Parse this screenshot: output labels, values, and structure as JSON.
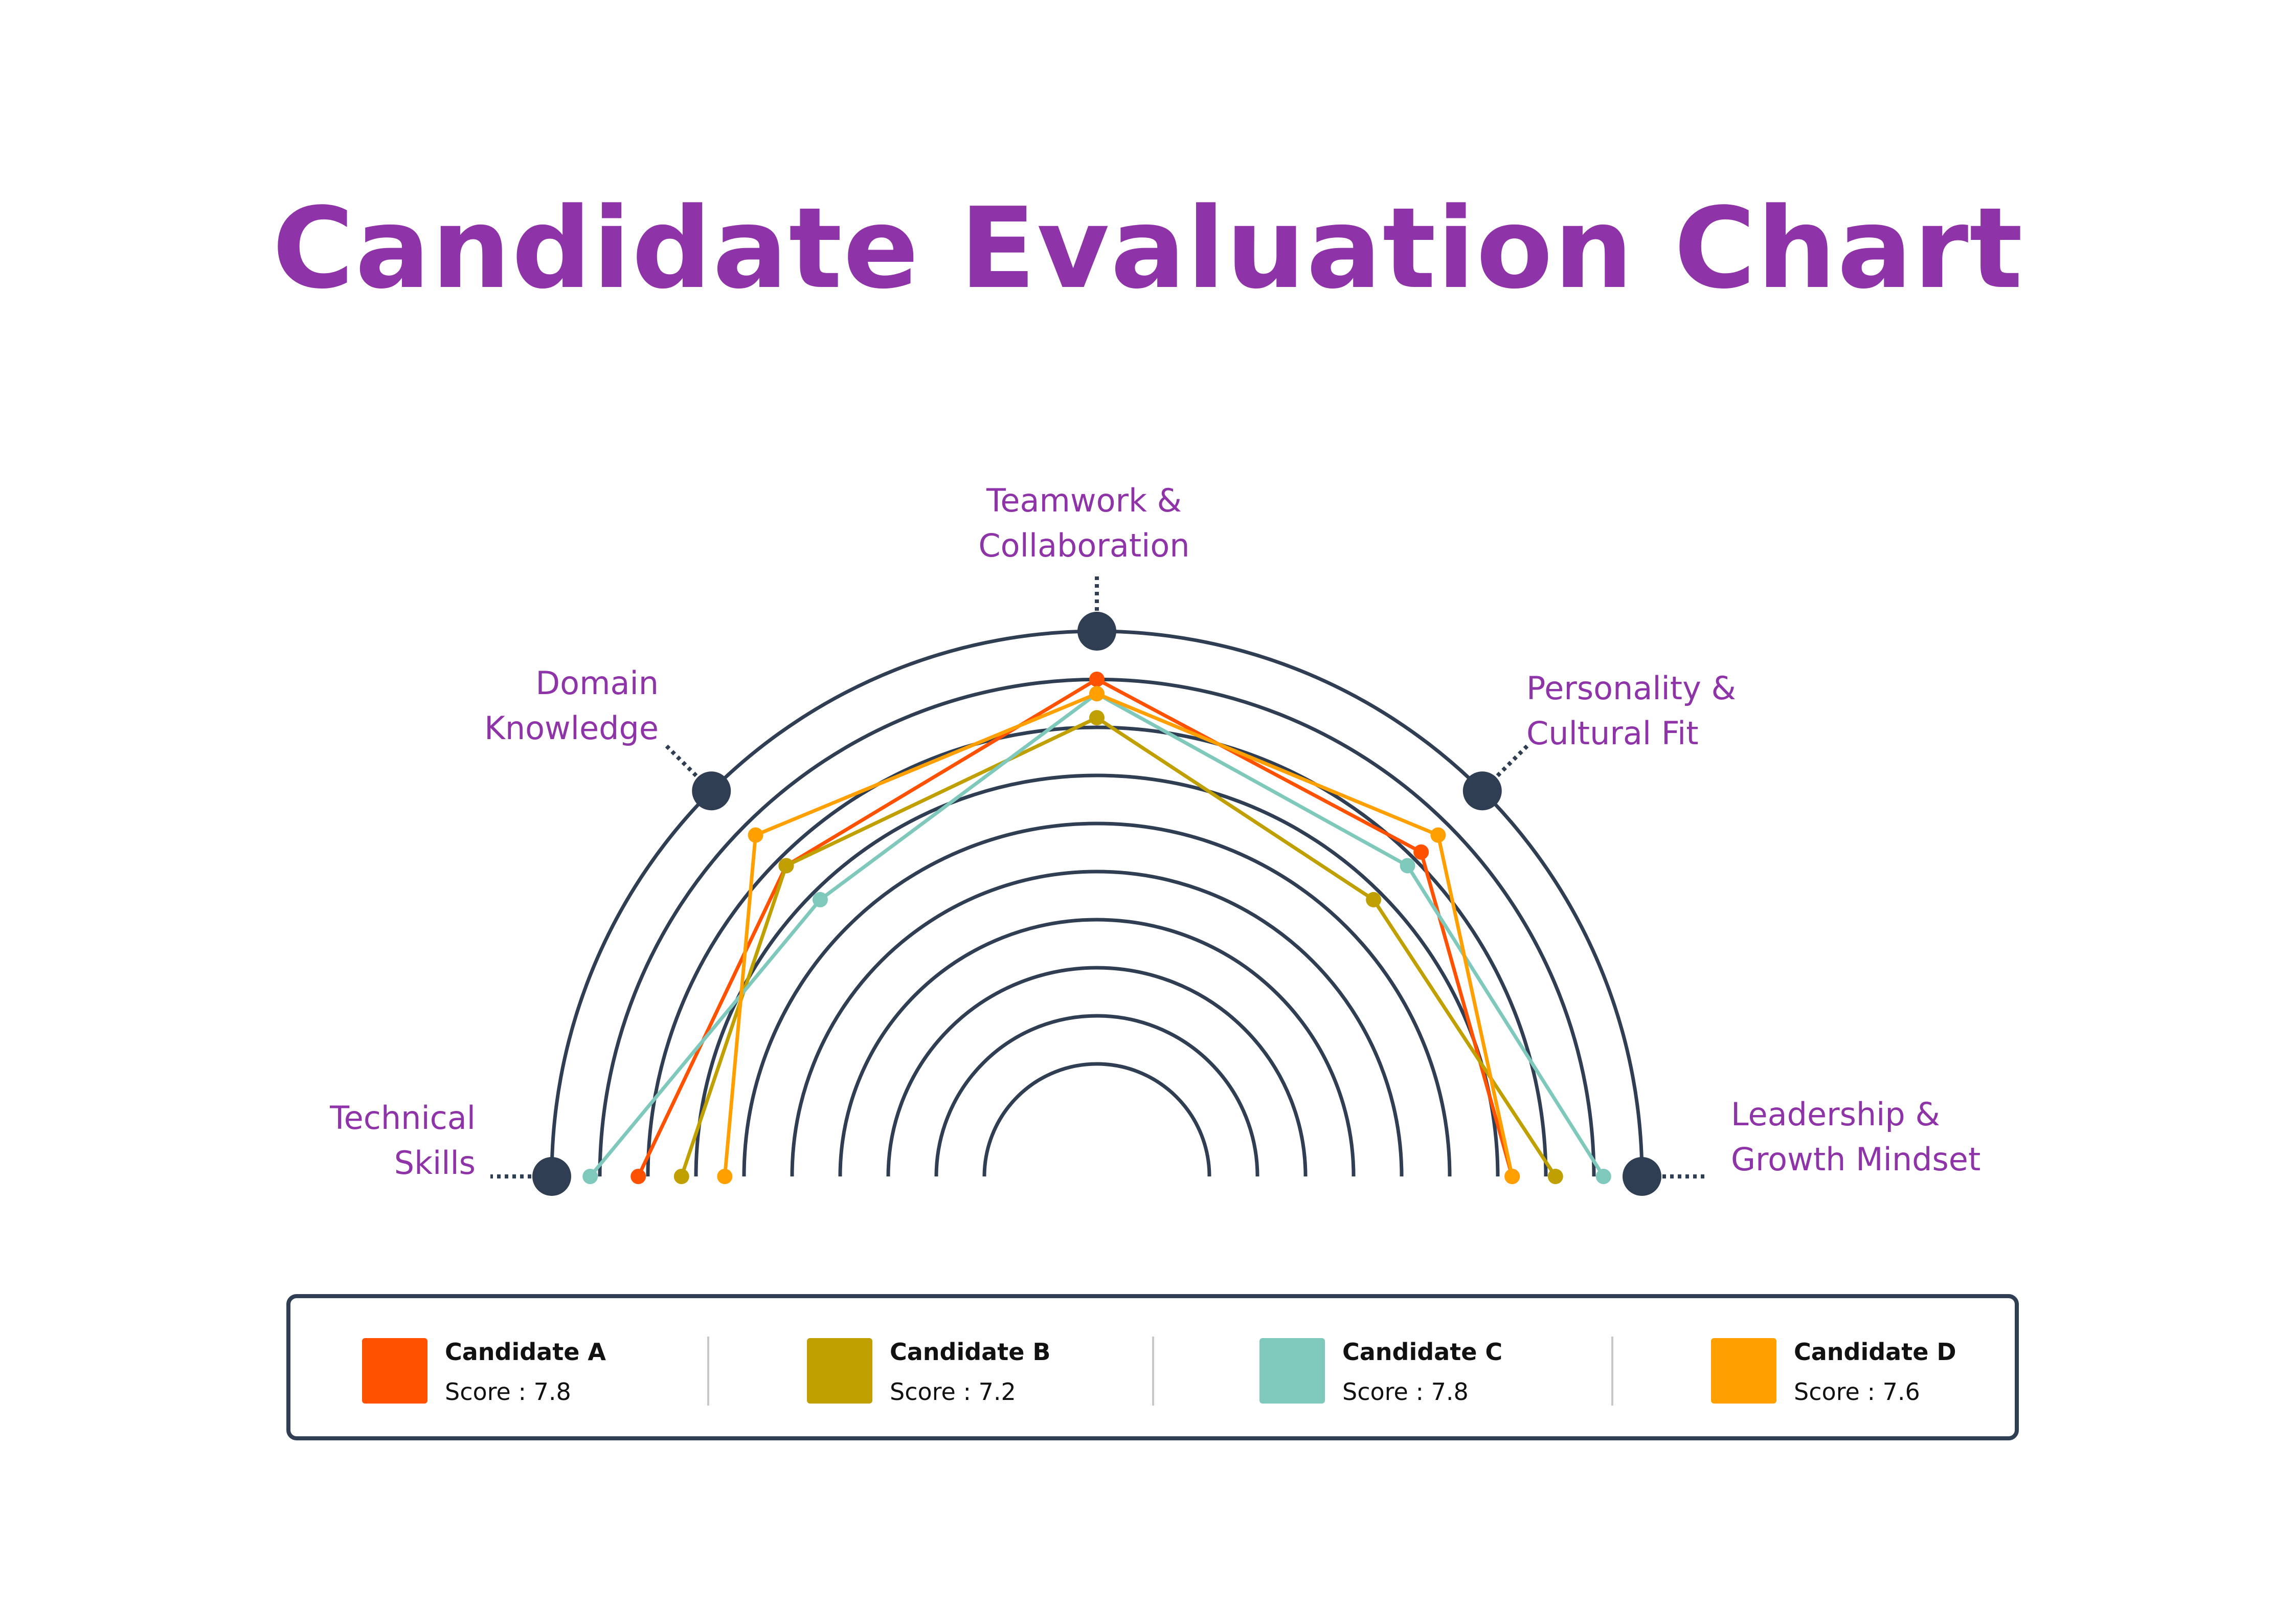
{
  "title": "Candidate Evaluation Chart",
  "chart_data": {
    "type": "radar",
    "layout": "semicircle",
    "title": "Candidate Evaluation Chart",
    "axes": [
      "Technical Skills",
      "Domain Knowledge",
      "Teamwork & Collaboration",
      "Personality & Cultural Fit",
      "Leadership & Growth Mindset"
    ],
    "axis_label_lines": [
      [
        "Technical",
        "Skills"
      ],
      [
        "Domain",
        "Knowledge"
      ],
      [
        "Teamwork &",
        "Collaboration"
      ],
      [
        "Personality &",
        "Cultural Fit"
      ],
      [
        "Leadership &",
        "Growth Mindset"
      ]
    ],
    "rings": 10,
    "range": [
      0,
      10
    ],
    "series": [
      {
        "name": "Candidate A",
        "score_label": "Score : 7.8",
        "color": "#FF5100",
        "values": [
          8.2,
          7.8,
          9.0,
          8.2,
          7.3
        ]
      },
      {
        "name": "Candidate B",
        "score_label": "Score : 7.2",
        "color": "#C0A000",
        "values": [
          7.3,
          7.8,
          8.2,
          6.8,
          8.2
        ]
      },
      {
        "name": "Candidate C",
        "score_label": "Score : 7.8",
        "color": "#7FC8BC",
        "values": [
          9.2,
          6.8,
          8.7,
          7.8,
          9.2
        ]
      },
      {
        "name": "Candidate D",
        "score_label": "Score : 7.6",
        "color": "#FFA000",
        "values": [
          6.4,
          8.7,
          8.7,
          8.7,
          7.3
        ]
      }
    ],
    "ring_color": "#2F3E53",
    "label_color": "#8E33A8",
    "legend_position": "bottom"
  }
}
